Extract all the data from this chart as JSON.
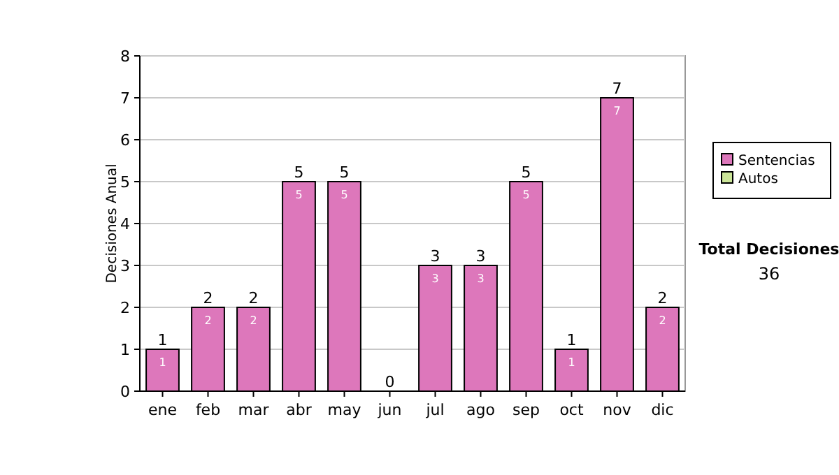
{
  "chart_data": {
    "type": "bar",
    "ylabel": "Decisiones Anual",
    "categories": [
      "ene",
      "feb",
      "mar",
      "abr",
      "may",
      "jun",
      "jul",
      "ago",
      "sep",
      "oct",
      "nov",
      "dic"
    ],
    "series": [
      {
        "name": "Sentencias",
        "color": "#dd77bb",
        "values": [
          1,
          2,
          2,
          5,
          5,
          0,
          3,
          3,
          5,
          1,
          7,
          2
        ],
        "value_labels": [
          "1",
          "2",
          "2",
          "5",
          "5",
          null,
          "3",
          "3",
          "5",
          "1",
          "7",
          "2"
        ]
      },
      {
        "name": "Autos",
        "color": "#cce699",
        "values": [
          0,
          0,
          0,
          0,
          0,
          0,
          0,
          0,
          0,
          0,
          0,
          0
        ]
      }
    ],
    "stacked": true,
    "totals": [
      "1",
      "2",
      "2",
      "5",
      "5",
      "0",
      "3",
      "3",
      "5",
      "1",
      "7",
      "2"
    ],
    "ylim": [
      0,
      8
    ],
    "yticks": [
      0,
      1,
      2,
      3,
      4,
      5,
      6,
      7,
      8
    ],
    "grid": "y",
    "legend": "right",
    "annotations": [
      "Total Decisiones",
      "36"
    ]
  }
}
